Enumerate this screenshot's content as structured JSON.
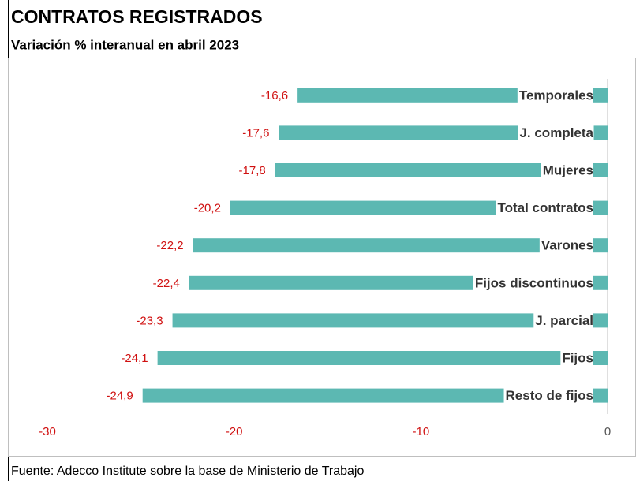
{
  "chart_data": {
    "type": "barh",
    "title": "CONTRATOS REGISTRADOS",
    "subtitle": "Variación % interanual en abril 2023",
    "source": "Fuente: Adecco Institute sobre la base de Ministerio de Trabajo",
    "categories": [
      "Temporales",
      "J. completa",
      "Mujeres",
      "Total contratos",
      "Varones",
      "Fijos discontinuos",
      "J. parcial",
      "Fijos",
      "Resto de fijos"
    ],
    "values": [
      -16.6,
      -17.6,
      -17.8,
      -20.2,
      -22.2,
      -22.4,
      -23.3,
      -24.1,
      -24.9
    ],
    "value_labels": [
      "-16,6",
      "-17,6",
      "-17,8",
      "-20,2",
      "-22,2",
      "-22,4",
      "-23,3",
      "-24,1",
      "-24,9"
    ],
    "color": "#5cb8b2",
    "xlim": [
      -30,
      0
    ],
    "xticks": [
      -30,
      -20,
      -10,
      0
    ]
  }
}
